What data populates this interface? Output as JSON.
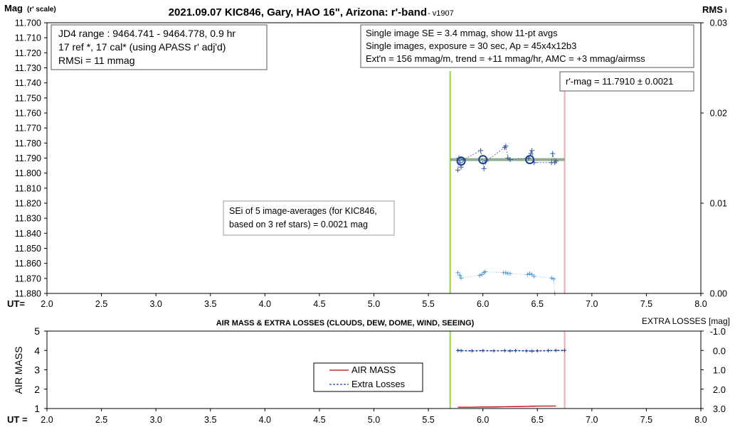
{
  "colors": {
    "series": "#2f5597",
    "ghost": "#5b9bd5",
    "airmass": "#c00000",
    "trend": "#7f9f7f",
    "start_line": "#92d050",
    "end_line": "#f4a6a6",
    "axis": "#000000",
    "grid_text": "#000000"
  },
  "top": {
    "title_main": "2021.09.07 KIC846, Gary, HAO 16\", Arizona: r'-band",
    "title_version": " - v1907",
    "ylabel_main": "Mag",
    "ylabel_sub": "(r' scale)",
    "ylabel_right": "RMS",
    "ylabel_right_sub": "i",
    "ut_label": "UT=",
    "box1": [
      "JD4 range : 9464.741 - 9464.778,  0.9  hr",
      "17 ref *, 17 cal* (using APASS r' adj'd)",
      "RMSi = 11 mmag"
    ],
    "box2": [
      "Single image SE = 3.4 mmag, show  11-pt avgs",
      "Single images, exposure = 30 sec, Ap = 45x4x12b3",
      "Ext'n = 156 mmag/m, trend =  +11 mmag/hr, AMC = +3 mmag/airmss"
    ],
    "mag_box": "r'-mag = 11.7910 ± 0.0021",
    "sei_box": [
      "SEi of 5 image-averages (for KIC846,",
      "based on 3 ref stars) = 0.0021 mag"
    ]
  },
  "bottom": {
    "title": "AIR MASS & EXTRA LOSSES (CLOUDS, DEW, DOME, WIND, SEEING)",
    "ylabel_left": "AIR MASS",
    "ylabel_right": "EXTRA LOSSES [mag]",
    "ut_label": "UT =",
    "legend": [
      "AIR MASS",
      "Extra Losses"
    ]
  },
  "chart_data": [
    {
      "type": "scatter",
      "title": "2021.09.07 KIC846, Gary, HAO 16\", Arizona: r'-band",
      "xlabel": "UT=",
      "ylabel": "Mag (r' scale)",
      "xlim": [
        2.0,
        8.0
      ],
      "ylim": [
        11.88,
        11.7
      ],
      "y_reversed": true,
      "y2label": "RMSi",
      "y2lim": [
        0.0,
        0.03
      ],
      "x_ticks": [
        "2.0",
        "2.5",
        "3.0",
        "3.5",
        "4.0",
        "4.5",
        "5.0",
        "5.5",
        "6.0",
        "6.5",
        "7.0",
        "7.5",
        "8.0"
      ],
      "y_ticks": [
        "11.700",
        "11.710",
        "11.720",
        "11.730",
        "11.740",
        "11.750",
        "11.760",
        "11.770",
        "11.780",
        "11.790",
        "11.800",
        "11.810",
        "11.820",
        "11.830",
        "11.840",
        "11.850",
        "11.860",
        "11.870",
        "11.880"
      ],
      "y2_ticks": [
        "0.00",
        "0.01",
        "0.02",
        "0.03"
      ],
      "start_ut": 5.7,
      "end_ut": 6.75,
      "series": [
        {
          "name": "",
          "x": [
            5.77,
            5.78,
            5.79,
            5.8,
            5.82,
            5.98,
            6.01,
            6.03,
            6.2,
            6.21,
            6.23,
            6.25,
            6.42,
            6.44,
            6.45,
            6.47,
            6.63,
            6.64,
            6.66,
            6.67
          ],
          "y": [
            11.798,
            11.79,
            11.793,
            11.796,
            11.791,
            11.785,
            11.797,
            11.792,
            11.783,
            11.782,
            11.79,
            11.791,
            11.79,
            11.787,
            11.785,
            11.793,
            11.793,
            11.787,
            11.793,
            11.792
          ]
        },
        {
          "name": "",
          "x": [
            5.8,
            6.0,
            6.43
          ],
          "y": [
            11.792,
            11.791,
            11.791
          ]
        },
        {
          "name": "",
          "x": [
            5.7,
            6.75
          ],
          "y": [
            11.791,
            11.791
          ]
        },
        {
          "name": "",
          "x": [
            5.77,
            5.79,
            5.8,
            5.97,
            5.99,
            6.01,
            6.02,
            6.19,
            6.21,
            6.23,
            6.25,
            6.41,
            6.43,
            6.45,
            6.47,
            6.63,
            6.65,
            6.66
          ],
          "y2": [
            0.0023,
            0.002,
            0.0017,
            0.002,
            0.0021,
            0.0023,
            0.0024,
            0.0023,
            0.0023,
            0.0022,
            0.0022,
            0.0021,
            0.0022,
            0.0021,
            0.0019,
            0.0017,
            0.0016,
            0.0
          ]
        }
      ]
    },
    {
      "type": "line",
      "title": "AIR MASS & EXTRA LOSSES (CLOUDS, DEW, DOME, WIND, SEEING)",
      "xlabel": "UT =",
      "ylabel": "AIR MASS",
      "xlim": [
        2.0,
        8.0
      ],
      "ylim": [
        1,
        5
      ],
      "y2label": "EXTRA LOSSES [mag]",
      "y2lim": [
        3.0,
        -1.0
      ],
      "x_ticks": [
        "2.0",
        "2.5",
        "3.0",
        "3.5",
        "4.0",
        "4.5",
        "5.0",
        "5.5",
        "6.0",
        "6.5",
        "7.0",
        "7.5",
        "8.0"
      ],
      "y_ticks": [
        "1",
        "2",
        "3",
        "4",
        "5"
      ],
      "y2_ticks": [
        "-1.0",
        "0.0",
        "1.0",
        "2.0",
        "3.0"
      ],
      "series": [
        {
          "name": "AIR MASS",
          "x": [
            5.77,
            5.9,
            6.0,
            6.1,
            6.2,
            6.3,
            6.4,
            6.45,
            6.55,
            6.67
          ],
          "y": [
            1.07,
            1.07,
            1.08,
            1.08,
            1.09,
            1.1,
            1.11,
            1.12,
            1.13,
            1.13
          ]
        },
        {
          "name": "Extra Losses",
          "x": [
            5.77,
            5.8,
            5.9,
            6.0,
            6.1,
            6.2,
            6.25,
            6.3,
            6.4,
            6.45,
            6.5,
            6.6,
            6.67,
            6.75
          ],
          "y2": [
            0.0,
            0.01,
            0.02,
            0.01,
            0.02,
            0.01,
            0.02,
            0.01,
            0.02,
            0.03,
            0.02,
            0.01,
            0.0,
            0.0
          ]
        }
      ]
    }
  ]
}
